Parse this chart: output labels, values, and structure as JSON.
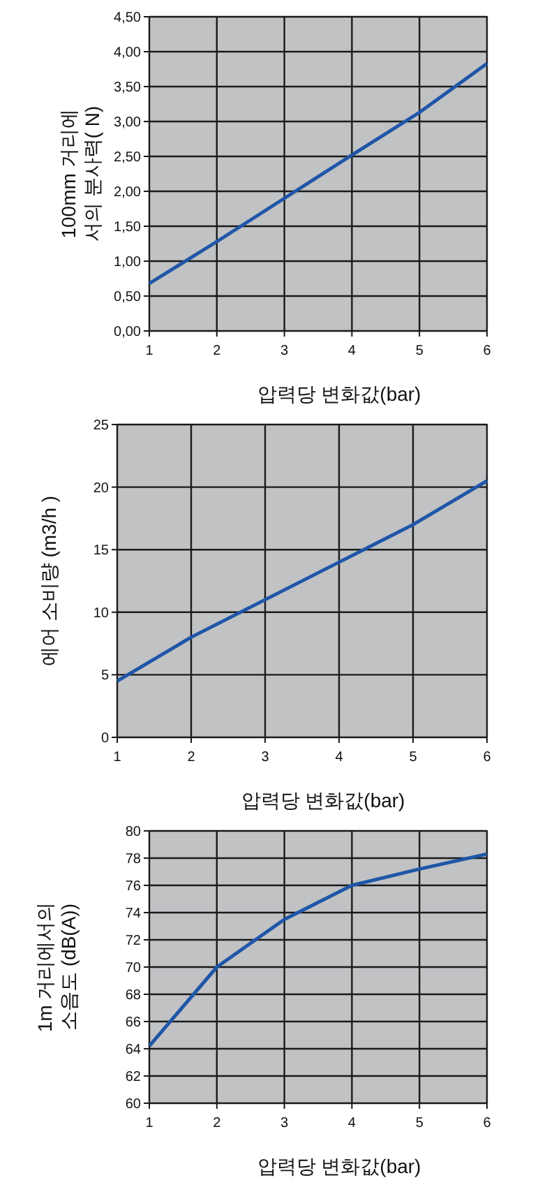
{
  "chart_data": [
    {
      "type": "line",
      "x": [
        1,
        2,
        3,
        4,
        5,
        6
      ],
      "xlim": [
        1,
        6
      ],
      "xticks": [
        1,
        2,
        3,
        4,
        5,
        6
      ],
      "ylim": [
        0,
        4.5
      ],
      "yticks": [
        {
          "value": 0,
          "label": "0,00"
        },
        {
          "value": 0.5,
          "label": "0,50"
        },
        {
          "value": 1,
          "label": "1,00"
        },
        {
          "value": 1.5,
          "label": "1,50"
        },
        {
          "value": 2,
          "label": "2,00"
        },
        {
          "value": 2.5,
          "label": "2,50"
        },
        {
          "value": 3,
          "label": "3,00"
        },
        {
          "value": 3.5,
          "label": "3,50"
        },
        {
          "value": 4,
          "label": "4,00"
        },
        {
          "value": 4.5,
          "label": "4,50"
        }
      ],
      "xlabel": "압력당 변화값(bar)",
      "ylabel": "100mm 거리에\n서의 분사력( N)",
      "grid": true,
      "marker": "none",
      "line_style": "solid",
      "series": [
        {
          "color": "#1f56a8",
          "values": [
            0.68,
            1.28,
            1.9,
            2.52,
            3.13,
            3.83
          ]
        }
      ]
    },
    {
      "type": "line",
      "x": [
        1,
        2,
        3,
        4,
        5,
        6
      ],
      "xlim": [
        1,
        6
      ],
      "xticks": [
        1,
        2,
        3,
        4,
        5,
        6
      ],
      "ylim": [
        0,
        25
      ],
      "yticks": [
        0,
        5,
        10,
        15,
        20,
        25
      ],
      "xlabel": "압력당 변화값(bar)",
      "ylabel": "에어 소비량 (m3/h )",
      "grid": true,
      "marker": "none",
      "line_style": "solid",
      "series": [
        {
          "color": "#1f56a8",
          "values": [
            4.5,
            8,
            11,
            14,
            17,
            20.5
          ]
        }
      ]
    },
    {
      "type": "line",
      "x": [
        1,
        2,
        3,
        4,
        5,
        6
      ],
      "xlim": [
        1,
        6
      ],
      "xticks": [
        1,
        2,
        3,
        4,
        5,
        6
      ],
      "ylim": [
        60,
        80
      ],
      "yticks": [
        60,
        62,
        64,
        66,
        68,
        70,
        72,
        74,
        76,
        78,
        80
      ],
      "xlabel": "압력당 변화값(bar)",
      "ylabel": "1m 거리에서의\n소음도 (dB(A))",
      "grid": true,
      "marker": "none",
      "line_style": "solid",
      "series": [
        {
          "color": "#1f56a8",
          "values": [
            64.2,
            70,
            73.5,
            76,
            77.2,
            78.3
          ]
        }
      ]
    }
  ]
}
